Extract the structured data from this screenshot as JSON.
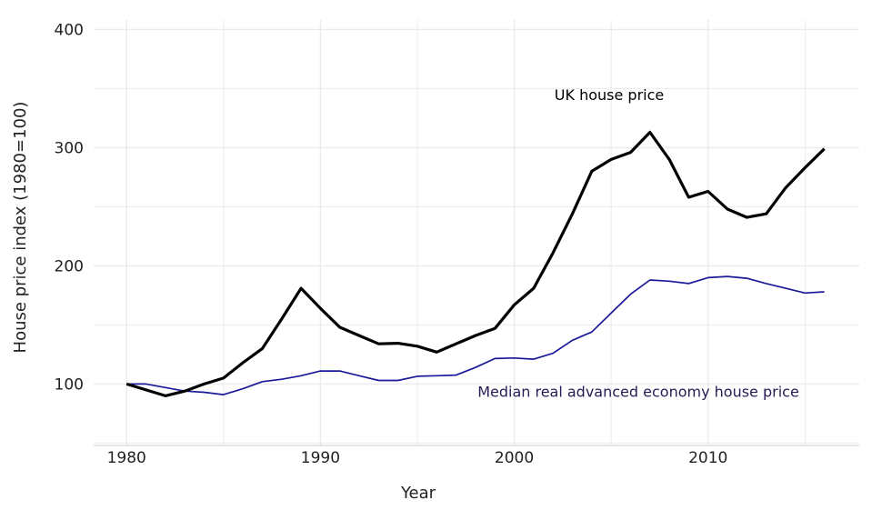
{
  "chart_data": {
    "type": "line",
    "title": "",
    "xlabel": "Year",
    "ylabel": "House price index (1980=100)",
    "xlim": [
      1978.3,
      2017.8
    ],
    "ylim": [
      48,
      408
    ],
    "grid": true,
    "x_ticks": [
      1980,
      1990,
      2000,
      2010
    ],
    "y_ticks": [
      100,
      200,
      300,
      400
    ],
    "x_tick_labels": [
      "1980",
      "1990",
      "2000",
      "2010"
    ],
    "y_tick_labels": [
      "100",
      "200",
      "300",
      "400"
    ],
    "x": [
      1980,
      1981,
      1982,
      1983,
      1984,
      1985,
      1986,
      1987,
      1988,
      1989,
      1990,
      1991,
      1992,
      1993,
      1994,
      1995,
      1996,
      1997,
      1998,
      1999,
      2000,
      2001,
      2002,
      2003,
      2004,
      2005,
      2006,
      2007,
      2008,
      2009,
      2010,
      2011,
      2012,
      2013,
      2014,
      2015,
      2016
    ],
    "series": [
      {
        "name": "UK house price",
        "color": "#000000",
        "values": [
          100,
          95,
          90,
          94,
          100,
          105,
          118,
          130,
          155,
          181,
          164,
          148,
          141,
          134,
          134.5,
          132,
          127,
          134,
          141,
          147,
          167,
          181,
          211,
          244,
          280,
          290,
          296,
          313,
          290,
          258,
          263,
          248,
          241,
          244,
          266,
          283,
          299
        ]
      },
      {
        "name": "Median real advanced economy house price",
        "color": "#1a1a99",
        "values": [
          100,
          100,
          97,
          94,
          93,
          91,
          96,
          102,
          104,
          107,
          111,
          111,
          107,
          103,
          103,
          106.5,
          107,
          107.5,
          114,
          121.5,
          122,
          121,
          126,
          137,
          144,
          160,
          176,
          188,
          187,
          185,
          190,
          191,
          189.5,
          185,
          181,
          177,
          178
        ]
      }
    ],
    "annotations": [
      {
        "text": "UK house price",
        "x": 2004.9,
        "y": 344,
        "color": "#000000"
      },
      {
        "text": "Median real advanced economy house price",
        "x": 2006.4,
        "y": 93,
        "color": "#2a1a55"
      }
    ]
  }
}
